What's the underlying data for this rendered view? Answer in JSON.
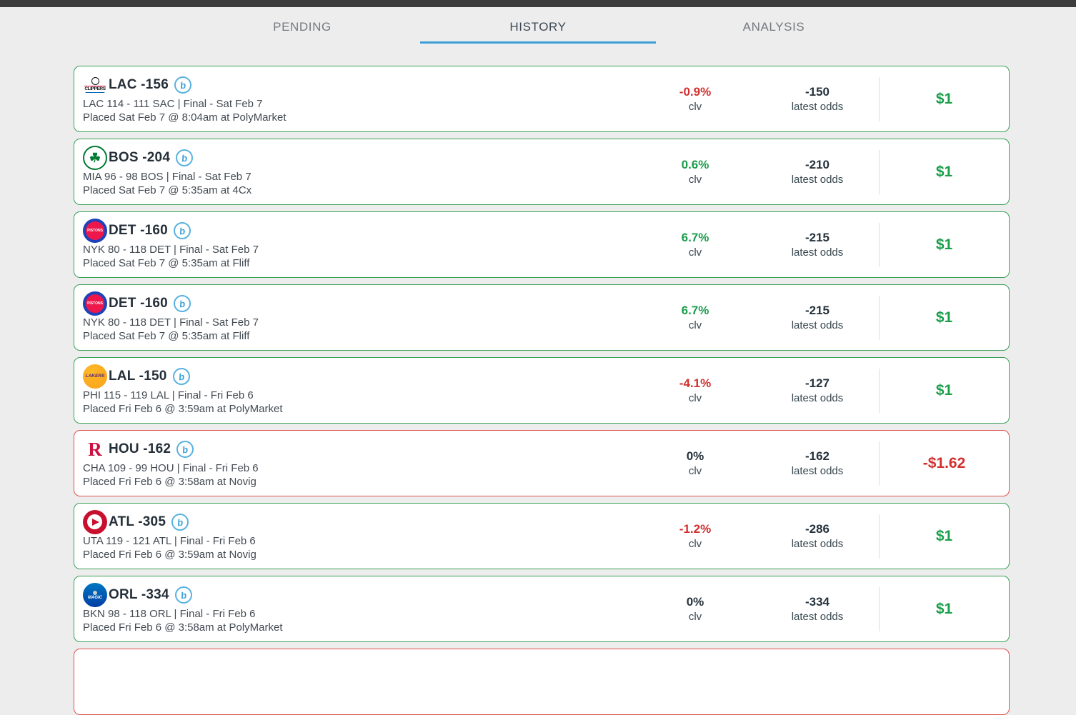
{
  "tabs": [
    {
      "label": "PENDING",
      "active": false
    },
    {
      "label": "HISTORY",
      "active": true
    },
    {
      "label": "ANALYSIS",
      "active": false
    }
  ],
  "labels": {
    "clv": "clv",
    "latest_odds": "latest odds"
  },
  "badges": {
    "b": "b"
  },
  "colors": {
    "win_border": "#3aa158",
    "loss_border": "#dd5252",
    "positive_text": "#1b9e4b",
    "negative_text": "#d32f2f",
    "accent_underline": "#3d9dd6",
    "topbar": "#3c3c3c"
  },
  "bets": [
    {
      "line": "LAC -156",
      "logo": "clippers-logo",
      "logo_text": "CLIPPERS",
      "score_line": "LAC 114 - 111 SAC | Final - Sat Feb 7",
      "placed_line": "Placed Sat Feb 7 @ 8:04am at PolyMarket",
      "clv": "-0.9%",
      "clv_color": "red",
      "odds": "-150",
      "profit": "$1",
      "result": "win"
    },
    {
      "line": "BOS -204",
      "logo": "celtics-logo",
      "logo_text": "☘",
      "score_line": "MIA 96 - 98 BOS | Final - Sat Feb 7",
      "placed_line": "Placed Sat Feb 7 @ 5:35am at 4Cx",
      "clv": "0.6%",
      "clv_color": "green",
      "odds": "-210",
      "profit": "$1",
      "result": "win"
    },
    {
      "line": "DET -160",
      "logo": "pistons-logo",
      "logo_text": "PISTONS",
      "score_line": "NYK 80 - 118 DET | Final - Sat Feb 7",
      "placed_line": "Placed Sat Feb 7 @ 5:35am at Fliff",
      "clv": "6.7%",
      "clv_color": "green",
      "odds": "-215",
      "profit": "$1",
      "result": "win"
    },
    {
      "line": "DET -160",
      "logo": "pistons-logo",
      "logo_text": "PISTONS",
      "score_line": "NYK 80 - 118 DET | Final - Sat Feb 7",
      "placed_line": "Placed Sat Feb 7 @ 5:35am at Fliff",
      "clv": "6.7%",
      "clv_color": "green",
      "odds": "-215",
      "profit": "$1",
      "result": "win"
    },
    {
      "line": "LAL -150",
      "logo": "lakers-logo",
      "logo_text": "LAKERS",
      "score_line": "PHI 115 - 119 LAL | Final - Fri Feb 6",
      "placed_line": "Placed Fri Feb 6 @ 3:59am at PolyMarket",
      "clv": "-4.1%",
      "clv_color": "red",
      "odds": "-127",
      "profit": "$1",
      "result": "win"
    },
    {
      "line": "HOU -162",
      "logo": "rockets-logo",
      "logo_text": "R",
      "score_line": "CHA 109 - 99 HOU | Final - Fri Feb 6",
      "placed_line": "Placed Fri Feb 6 @ 3:58am at Novig",
      "clv": "0%",
      "clv_color": "neutral",
      "odds": "-162",
      "profit": "-$1.62",
      "result": "loss"
    },
    {
      "line": "ATL -305",
      "logo": "hawks-logo",
      "logo_text": "",
      "score_line": "UTA 119 - 121 ATL | Final - Fri Feb 6",
      "placed_line": "Placed Fri Feb 6 @ 3:59am at Novig",
      "clv": "-1.2%",
      "clv_color": "red",
      "odds": "-286",
      "profit": "$1",
      "result": "win"
    },
    {
      "line": "ORL -334",
      "logo": "magic-logo",
      "logo_text": "MAGIC",
      "score_line": "BKN 98 - 118 ORL | Final - Fri Feb 6",
      "placed_line": "Placed Fri Feb 6 @ 3:58am at PolyMarket",
      "clv": "0%",
      "clv_color": "neutral",
      "odds": "-334",
      "profit": "$1",
      "result": "win"
    }
  ],
  "partial_card": {
    "result": "loss"
  }
}
